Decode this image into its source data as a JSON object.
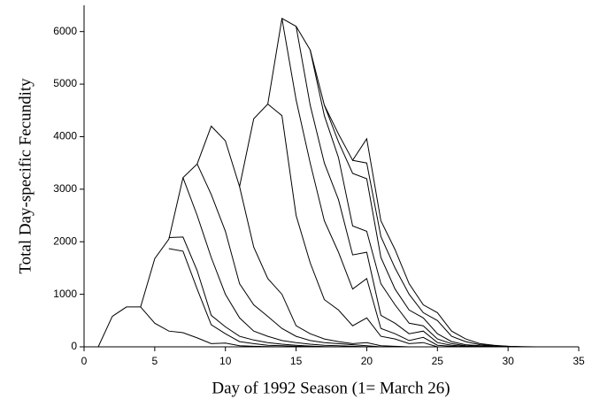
{
  "chart_data": {
    "type": "line",
    "x_label": "Day of 1992 Season (1= March 26)",
    "y_label": "Total Day-specific Fecundity",
    "xlim": [
      0,
      35
    ],
    "xticks": [
      0,
      5,
      10,
      15,
      20,
      25,
      30,
      35
    ],
    "ylim": [
      0,
      6500
    ],
    "yticks": [
      0,
      1000,
      2000,
      3000,
      4000,
      5000,
      6000
    ],
    "color": "#000000",
    "grid": false,
    "series": [
      {
        "x": [
          1,
          2,
          3,
          4,
          5,
          6,
          7,
          8,
          9,
          10,
          11,
          12,
          13,
          14,
          15,
          16,
          17,
          18,
          19,
          20,
          21,
          22,
          23,
          24,
          25,
          26,
          27,
          28,
          29,
          30,
          31,
          32
        ],
        "values": [
          0,
          580,
          760,
          760,
          1680,
          2050,
          3220,
          3480,
          4200,
          3920,
          3050,
          4340,
          4620,
          6250,
          6100,
          5650,
          4600,
          4050,
          3550,
          3960,
          2400,
          1850,
          1200,
          800,
          650,
          300,
          150,
          60,
          30,
          10,
          5,
          0
        ]
      },
      {
        "x": [
          4,
          5,
          6,
          7,
          8,
          9,
          10,
          11,
          12,
          13,
          14,
          15,
          16
        ],
        "values": [
          760,
          450,
          300,
          270,
          170,
          60,
          70,
          20,
          10,
          5,
          0,
          0,
          0
        ]
      },
      {
        "x": [
          6,
          7,
          8,
          9,
          10,
          11,
          12,
          13,
          14,
          15,
          16,
          17
        ],
        "values": [
          1870,
          1820,
          1100,
          420,
          250,
          100,
          60,
          30,
          20,
          10,
          5,
          0
        ]
      },
      {
        "x": [
          6,
          7,
          8,
          9,
          10,
          11,
          12,
          13,
          14,
          15,
          16,
          17,
          18
        ],
        "values": [
          2080,
          2090,
          1450,
          600,
          380,
          200,
          130,
          80,
          50,
          30,
          15,
          5,
          0
        ]
      },
      {
        "x": [
          7,
          8,
          9,
          10,
          11,
          12,
          13,
          14,
          15,
          16,
          17,
          18,
          19,
          20
        ],
        "values": [
          3220,
          2500,
          1700,
          1000,
          550,
          300,
          200,
          120,
          80,
          50,
          30,
          20,
          10,
          0
        ]
      },
      {
        "x": [
          8,
          9,
          10,
          11,
          12,
          13,
          14,
          15,
          16,
          17,
          18,
          19,
          20,
          21
        ],
        "values": [
          3480,
          2900,
          2200,
          1200,
          800,
          580,
          350,
          200,
          120,
          80,
          60,
          40,
          20,
          0
        ]
      },
      {
        "x": [
          11,
          12,
          13,
          14,
          15,
          16,
          17,
          18,
          19,
          20,
          21,
          22,
          23
        ],
        "values": [
          3050,
          1900,
          1300,
          1000,
          400,
          250,
          150,
          100,
          60,
          80,
          20,
          10,
          0
        ]
      },
      {
        "x": [
          13,
          14,
          15,
          16,
          17,
          18,
          19,
          20,
          21,
          22,
          23,
          24,
          25
        ],
        "values": [
          4620,
          4400,
          2500,
          1600,
          900,
          700,
          400,
          550,
          200,
          150,
          60,
          80,
          0
        ]
      },
      {
        "x": [
          14,
          15,
          16,
          17,
          18,
          19,
          20,
          21,
          22,
          23,
          24,
          25,
          26,
          27
        ],
        "values": [
          6250,
          4700,
          3500,
          2400,
          1800,
          1100,
          1300,
          350,
          250,
          120,
          180,
          30,
          10,
          0
        ]
      },
      {
        "x": [
          15,
          16,
          17,
          18,
          19,
          20,
          21,
          22,
          23,
          24,
          25,
          26,
          27,
          28
        ],
        "values": [
          6100,
          4600,
          3500,
          2800,
          1750,
          1800,
          600,
          450,
          250,
          300,
          80,
          30,
          10,
          0
        ]
      },
      {
        "x": [
          16,
          17,
          18,
          19,
          20,
          21,
          22,
          23,
          24,
          25,
          26,
          27,
          28,
          29
        ],
        "values": [
          5650,
          4400,
          3600,
          2300,
          2200,
          1200,
          800,
          450,
          400,
          150,
          60,
          20,
          10,
          0
        ]
      },
      {
        "x": [
          17,
          18,
          19,
          20,
          21,
          22,
          23,
          24,
          25,
          26,
          27,
          28,
          29,
          30
        ],
        "values": [
          4600,
          3900,
          3300,
          3200,
          1700,
          1100,
          700,
          550,
          250,
          100,
          40,
          20,
          10,
          0
        ]
      },
      {
        "x": [
          19,
          20,
          21,
          22,
          23,
          24,
          25,
          26,
          27,
          28,
          29,
          30,
          31
        ],
        "values": [
          3550,
          3500,
          2100,
          1500,
          1000,
          650,
          500,
          200,
          100,
          40,
          20,
          10,
          0
        ]
      }
    ]
  }
}
